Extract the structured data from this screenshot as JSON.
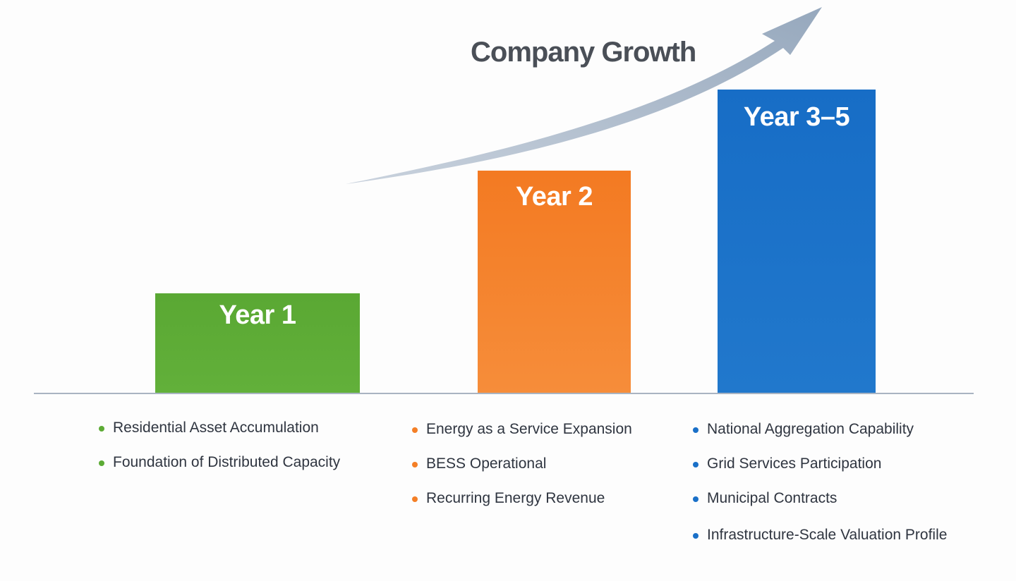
{
  "title": "Company Growth",
  "colors": {
    "year1": "#5cab35",
    "year2": "#f47f27",
    "year3_5": "#1a70c8",
    "arrow": "#a2b1c4",
    "title": "#4a4f57"
  },
  "arrow_icon": "upward-growth-arrow",
  "stages": [
    {
      "label": "Year 1",
      "items": [
        "Residential Asset Accumulation",
        "Foundation of Distributed Capacity"
      ]
    },
    {
      "label": "Year 2",
      "items": [
        "Energy as a Service Expansion",
        "BESS Operational",
        "Recurring Energy Revenue"
      ]
    },
    {
      "label": "Year 3–5",
      "items": [
        "National Aggregation Capability",
        "Grid Services Participation",
        "Municipal Contracts",
        "Infrastructure-Scale Valuation Profile"
      ]
    }
  ]
}
